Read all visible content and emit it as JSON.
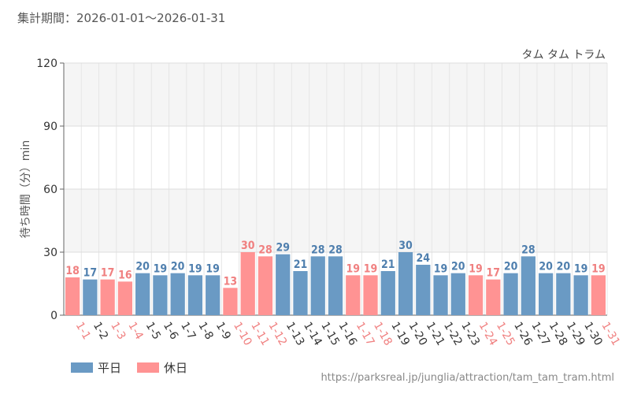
{
  "period_label": "集計期間：2026-01-01～2026-01-31",
  "source_url": "https://parksreal.jp/junglia/attraction/tam_tam_tram.html",
  "colors": {
    "weekday": "#6a9ac4",
    "holiday": "#ff9393",
    "weekday_text": "#4f7fae",
    "holiday_text": "#f08080"
  },
  "chart_data": {
    "type": "bar",
    "title": "タム タム トラム",
    "xlabel": "",
    "ylabel": "待ち時間（分）min",
    "ylim": [
      0,
      120
    ],
    "yticks": [
      0,
      30,
      60,
      90,
      120
    ],
    "categories": [
      "1-1",
      "1-2",
      "1-3",
      "1-4",
      "1-5",
      "1-6",
      "1-7",
      "1-8",
      "1-9",
      "1-10",
      "1-11",
      "1-12",
      "1-13",
      "1-14",
      "1-15",
      "1-16",
      "1-17",
      "1-18",
      "1-19",
      "1-20",
      "1-21",
      "1-22",
      "1-23",
      "1-24",
      "1-25",
      "1-26",
      "1-27",
      "1-28",
      "1-29",
      "1-30",
      "1-31"
    ],
    "values": [
      18,
      17,
      17,
      16,
      20,
      19,
      20,
      19,
      19,
      13,
      30,
      28,
      29,
      21,
      28,
      28,
      19,
      19,
      21,
      30,
      24,
      19,
      20,
      19,
      17,
      20,
      28,
      20,
      20,
      19,
      19
    ],
    "day_type": [
      "holiday",
      "weekday",
      "holiday",
      "holiday",
      "weekday",
      "weekday",
      "weekday",
      "weekday",
      "weekday",
      "holiday",
      "holiday",
      "holiday",
      "weekday",
      "weekday",
      "weekday",
      "weekday",
      "holiday",
      "holiday",
      "weekday",
      "weekday",
      "weekday",
      "weekday",
      "weekday",
      "holiday",
      "holiday",
      "weekday",
      "weekday",
      "weekday",
      "weekday",
      "weekday",
      "holiday"
    ],
    "legend": [
      {
        "name": "平日",
        "key": "weekday"
      },
      {
        "name": "休日",
        "key": "holiday"
      }
    ],
    "legend_position": "bottom-left",
    "grid": true
  }
}
